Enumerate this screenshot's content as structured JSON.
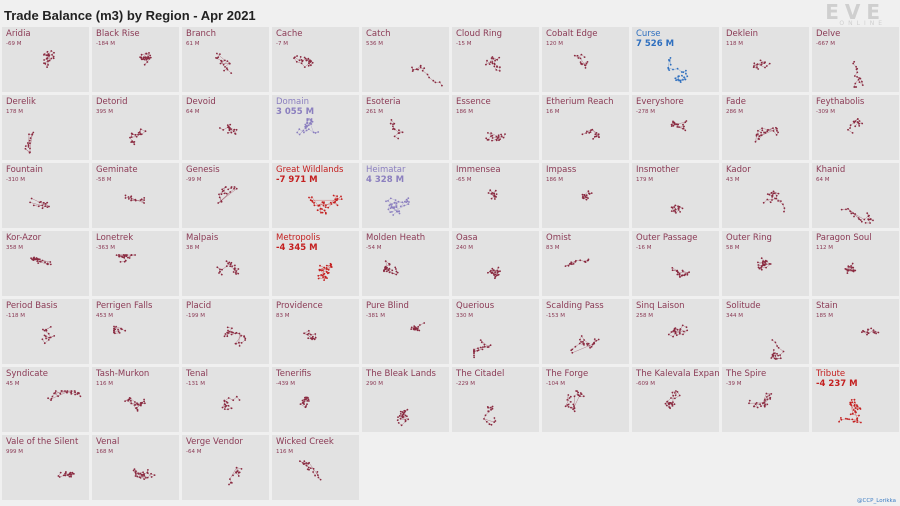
{
  "title": "Trade Balance (m3) by Region - Apr 2021",
  "logo": {
    "main": "EVE",
    "sub": "ONLINE"
  },
  "credit": "@CCP_Lorikka",
  "colors": {
    "strong_positive": "#2e6fbf",
    "positive": "#8b7fbf",
    "neutral_label": "#8b3a55",
    "negative_strong": "#c42020",
    "dot_neutral": "#8a2a40"
  },
  "chart_data": {
    "type": "small-multiples",
    "title": "Trade Balance (m3) by Region - Apr 2021",
    "unit": "m3",
    "regions": [
      {
        "name": "Aridia",
        "value": "-69 M",
        "v": -69
      },
      {
        "name": "Black Rise",
        "value": "-184 M",
        "v": -184
      },
      {
        "name": "Branch",
        "value": "61 M",
        "v": 61
      },
      {
        "name": "Cache",
        "value": "-7 M",
        "v": -7
      },
      {
        "name": "Catch",
        "value": "536 M",
        "v": 536
      },
      {
        "name": "Cloud Ring",
        "value": "-15 M",
        "v": -15
      },
      {
        "name": "Cobalt Edge",
        "value": "120 M",
        "v": 120
      },
      {
        "name": "Curse",
        "value": "7 526 M",
        "v": 7526
      },
      {
        "name": "Deklein",
        "value": "118 M",
        "v": 118
      },
      {
        "name": "Delve",
        "value": "-667 M",
        "v": -667
      },
      {
        "name": "Derelik",
        "value": "178 M",
        "v": 178
      },
      {
        "name": "Detorid",
        "value": "395 M",
        "v": 395
      },
      {
        "name": "Devoid",
        "value": "64 M",
        "v": 64
      },
      {
        "name": "Domain",
        "value": "3 055 M",
        "v": 3055
      },
      {
        "name": "Esoteria",
        "value": "261 M",
        "v": 261
      },
      {
        "name": "Essence",
        "value": "186 M",
        "v": 186
      },
      {
        "name": "Etherium Reach",
        "value": "16 M",
        "v": 16
      },
      {
        "name": "Everyshore",
        "value": "-278 M",
        "v": -278
      },
      {
        "name": "Fade",
        "value": "286 M",
        "v": 286
      },
      {
        "name": "Feythabolis",
        "value": "-309 M",
        "v": -309
      },
      {
        "name": "Fountain",
        "value": "-310 M",
        "v": -310
      },
      {
        "name": "Geminate",
        "value": "-58 M",
        "v": -58
      },
      {
        "name": "Genesis",
        "value": "-99 M",
        "v": -99
      },
      {
        "name": "Great Wildlands",
        "value": "-7 971 M",
        "v": -7971
      },
      {
        "name": "Heimatar",
        "value": "4 328 M",
        "v": 4328
      },
      {
        "name": "Immensea",
        "value": "-65 M",
        "v": -65
      },
      {
        "name": "Impass",
        "value": "186 M",
        "v": 186
      },
      {
        "name": "Insmother",
        "value": "179 M",
        "v": 179
      },
      {
        "name": "Kador",
        "value": "43 M",
        "v": 43
      },
      {
        "name": "Khanid",
        "value": "64 M",
        "v": 64
      },
      {
        "name": "Kor-Azor",
        "value": "358 M",
        "v": 358
      },
      {
        "name": "Lonetrek",
        "value": "-363 M",
        "v": -363
      },
      {
        "name": "Malpais",
        "value": "38 M",
        "v": 38
      },
      {
        "name": "Metropolis",
        "value": "-4 345 M",
        "v": -4345
      },
      {
        "name": "Molden Heath",
        "value": "-54 M",
        "v": -54
      },
      {
        "name": "Oasa",
        "value": "240 M",
        "v": 240
      },
      {
        "name": "Omist",
        "value": "83 M",
        "v": 83
      },
      {
        "name": "Outer Passage",
        "value": "-16 M",
        "v": -16
      },
      {
        "name": "Outer Ring",
        "value": "58 M",
        "v": 58
      },
      {
        "name": "Paragon Soul",
        "value": "112 M",
        "v": 112
      },
      {
        "name": "Period Basis",
        "value": "-118 M",
        "v": -118
      },
      {
        "name": "Perrigen Falls",
        "value": "453 M",
        "v": 453
      },
      {
        "name": "Placid",
        "value": "-199 M",
        "v": -199
      },
      {
        "name": "Providence",
        "value": "83 M",
        "v": 83
      },
      {
        "name": "Pure Blind",
        "value": "-381 M",
        "v": -381
      },
      {
        "name": "Querious",
        "value": "330 M",
        "v": 330
      },
      {
        "name": "Scalding Pass",
        "value": "-153 M",
        "v": -153
      },
      {
        "name": "Sinq Laison",
        "value": "258 M",
        "v": 258
      },
      {
        "name": "Solitude",
        "value": "344 M",
        "v": 344
      },
      {
        "name": "Stain",
        "value": "185 M",
        "v": 185
      },
      {
        "name": "Syndicate",
        "value": "45 M",
        "v": 45
      },
      {
        "name": "Tash-Murkon",
        "value": "116 M",
        "v": 116
      },
      {
        "name": "Tenal",
        "value": "-131 M",
        "v": -131
      },
      {
        "name": "Tenerifis",
        "value": "-439 M",
        "v": -439
      },
      {
        "name": "The Bleak Lands",
        "value": "290 M",
        "v": 290
      },
      {
        "name": "The Citadel",
        "value": "-229 M",
        "v": -229
      },
      {
        "name": "The Forge",
        "value": "-104 M",
        "v": -104
      },
      {
        "name": "The Kalevala Expanse",
        "value": "-609 M",
        "v": -609
      },
      {
        "name": "The Spire",
        "value": "-39 M",
        "v": -39
      },
      {
        "name": "Tribute",
        "value": "-4 237 M",
        "v": -4237
      },
      {
        "name": "Vale of the Silent",
        "value": "999 M",
        "v": 999
      },
      {
        "name": "Venal",
        "value": "168 M",
        "v": 168
      },
      {
        "name": "Verge Vendor",
        "value": "-64 M",
        "v": -64
      },
      {
        "name": "Wicked Creek",
        "value": "116 M",
        "v": 116
      }
    ]
  }
}
